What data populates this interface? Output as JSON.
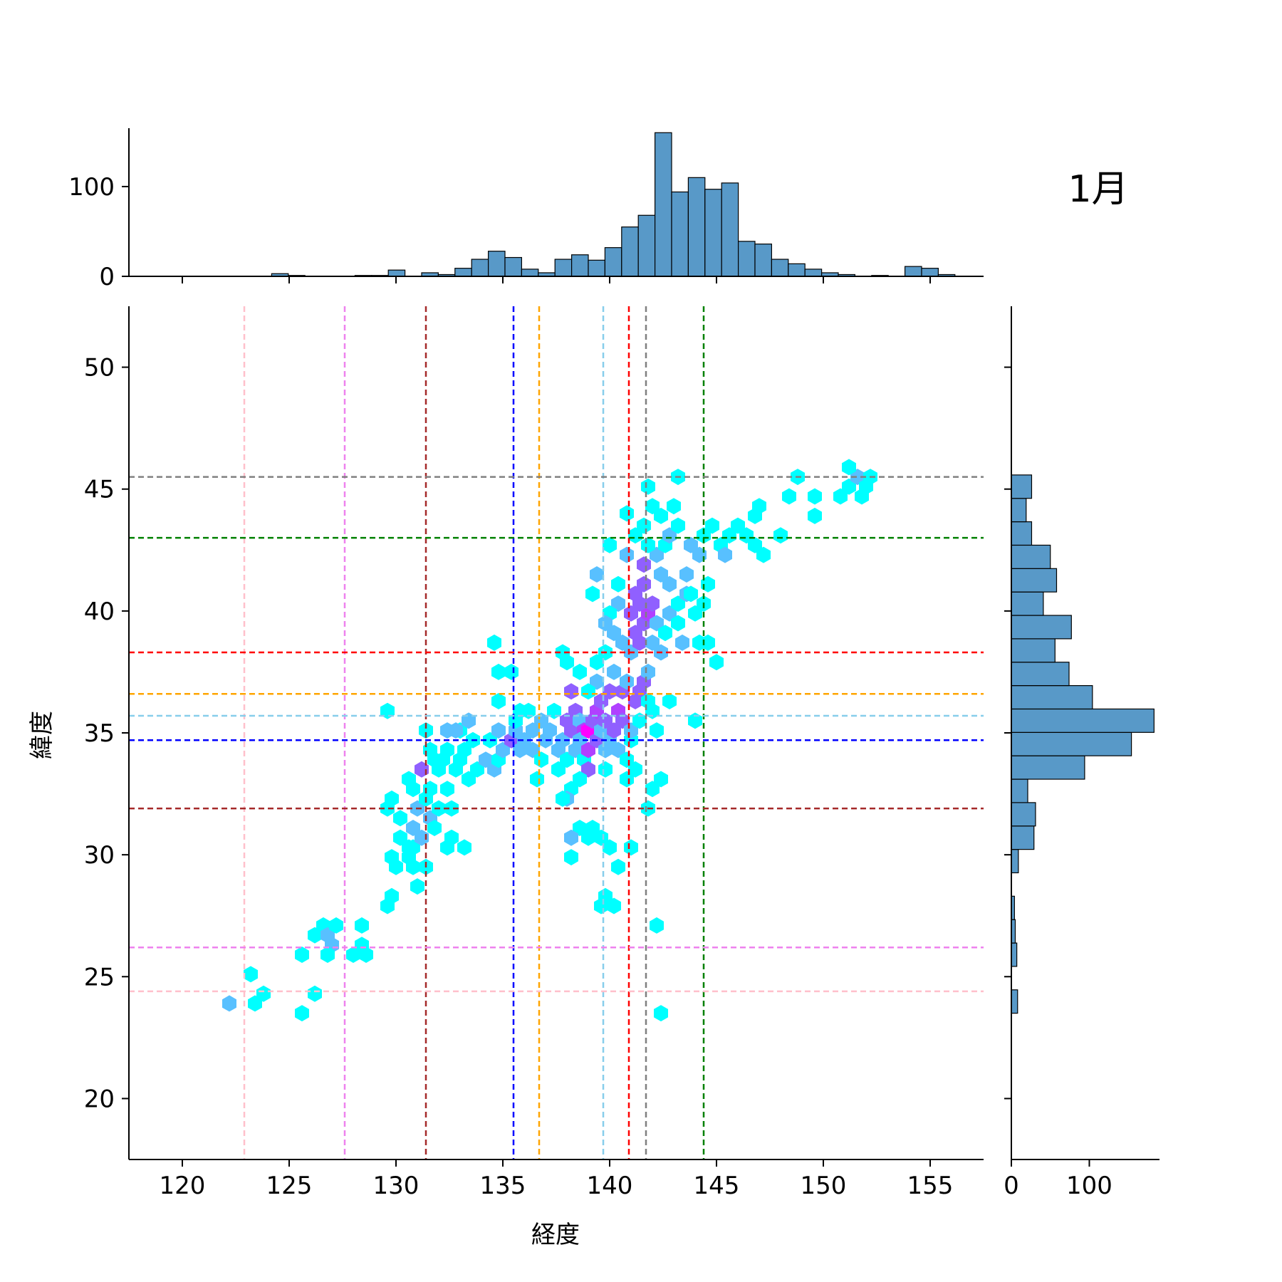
{
  "chart_data": {
    "type": "hexbin",
    "title": "1月",
    "xlabel": "経度",
    "ylabel": "緯度",
    "xlim": [
      117.5,
      157.5
    ],
    "ylim": [
      17.5,
      52.5
    ],
    "xticks": [
      120,
      125,
      130,
      135,
      140,
      145,
      150,
      155
    ],
    "yticks": [
      20,
      25,
      30,
      35,
      40,
      45,
      50
    ],
    "top_hist": {
      "bin_start": 119.5,
      "bin_width": 0.78,
      "yticks": [
        0,
        100
      ],
      "ylim": [
        0,
        165
      ],
      "counts": [
        0,
        0,
        0,
        0,
        0,
        0,
        3,
        1,
        0,
        0,
        0,
        1,
        1,
        7,
        0,
        4,
        2,
        9,
        19,
        28,
        21,
        8,
        4,
        19,
        24,
        18,
        32,
        55,
        68,
        160,
        94,
        110,
        97,
        104,
        39,
        36,
        19,
        14,
        8,
        4,
        2,
        0,
        1,
        0,
        11,
        9,
        2,
        0,
        0,
        0,
        0,
        0,
        0,
        0,
        0,
        0,
        0,
        0,
        0,
        0,
        0,
        0
      ]
    },
    "right_hist": {
      "bin_start": 23.5,
      "bin_width": 0.96,
      "xticks": [
        0,
        100
      ],
      "xlim": [
        0,
        190
      ],
      "counts": [
        8,
        0,
        7,
        5,
        4,
        0,
        9,
        29,
        31,
        21,
        94,
        154,
        183,
        104,
        74,
        56,
        77,
        41,
        58,
        50,
        26,
        19,
        26
      ]
    },
    "vlines": [
      {
        "x": 122.9,
        "color": "#ffc0cb"
      },
      {
        "x": 127.6,
        "color": "#ee82ee"
      },
      {
        "x": 131.4,
        "color": "#a52a2a"
      },
      {
        "x": 135.5,
        "color": "#0000ff"
      },
      {
        "x": 136.7,
        "color": "#ffa500"
      },
      {
        "x": 139.7,
        "color": "#87ceeb"
      },
      {
        "x": 140.9,
        "color": "#ff0000"
      },
      {
        "x": 141.7,
        "color": "#808080"
      },
      {
        "x": 144.4,
        "color": "#008000"
      }
    ],
    "hlines": [
      {
        "y": 24.4,
        "color": "#ffc0cb"
      },
      {
        "y": 26.2,
        "color": "#ee82ee"
      },
      {
        "y": 31.9,
        "color": "#a52a2a"
      },
      {
        "y": 34.7,
        "color": "#0000ff"
      },
      {
        "y": 35.7,
        "color": "#87ceeb"
      },
      {
        "y": 36.6,
        "color": "#ffa500"
      },
      {
        "y": 38.3,
        "color": "#ff0000"
      },
      {
        "y": 43.0,
        "color": "#008000"
      },
      {
        "y": 45.5,
        "color": "#808080"
      }
    ],
    "colormap": [
      "#00ffff",
      "#58c0ff",
      "#9060ff",
      "#b040ff",
      "#ff00ff"
    ],
    "hex_points": [
      [
        122.2,
        23.9,
        2
      ],
      [
        123.4,
        23.9,
        1
      ],
      [
        123.8,
        24.3,
        1
      ],
      [
        123.2,
        25.1,
        1
      ],
      [
        125.6,
        23.5,
        1
      ],
      [
        126.2,
        24.3,
        1
      ],
      [
        125.6,
        25.9,
        1
      ],
      [
        126.2,
        26.7,
        1
      ],
      [
        126.6,
        27.1,
        1
      ],
      [
        126.8,
        26.7,
        2
      ],
      [
        127.2,
        27.1,
        1
      ],
      [
        127.0,
        26.3,
        2
      ],
      [
        126.8,
        25.9,
        1
      ],
      [
        128.0,
        25.9,
        1
      ],
      [
        128.6,
        25.9,
        1
      ],
      [
        128.4,
        26.3,
        1
      ],
      [
        128.4,
        27.1,
        1
      ],
      [
        129.6,
        27.9,
        1
      ],
      [
        129.8,
        28.3,
        1
      ],
      [
        129.8,
        29.9,
        1
      ],
      [
        130.0,
        29.5,
        1
      ],
      [
        130.6,
        29.9,
        1
      ],
      [
        130.8,
        29.5,
        1
      ],
      [
        130.8,
        30.3,
        1
      ],
      [
        131.4,
        29.5,
        1
      ],
      [
        130.6,
        30.3,
        1
      ],
      [
        131.0,
        28.7,
        1
      ],
      [
        129.6,
        31.9,
        1
      ],
      [
        129.8,
        32.3,
        1
      ],
      [
        130.2,
        31.5,
        1
      ],
      [
        130.2,
        30.7,
        1
      ],
      [
        130.8,
        31.1,
        2
      ],
      [
        130.8,
        32.7,
        1
      ],
      [
        131.0,
        31.9,
        2
      ],
      [
        131.2,
        33.5,
        3
      ],
      [
        130.6,
        33.1,
        1
      ],
      [
        131.4,
        32.3,
        1
      ],
      [
        131.6,
        31.5,
        2
      ],
      [
        131.2,
        30.7,
        2
      ],
      [
        132.0,
        31.9,
        1
      ],
      [
        131.8,
        31.1,
        1
      ],
      [
        132.4,
        30.3,
        1
      ],
      [
        132.6,
        30.7,
        1
      ],
      [
        133.2,
        30.3,
        1
      ],
      [
        132.4,
        32.7,
        1
      ],
      [
        132.6,
        31.9,
        1
      ],
      [
        131.6,
        32.7,
        1
      ],
      [
        131.6,
        34.3,
        1
      ],
      [
        131.8,
        33.9,
        1
      ],
      [
        132.0,
        33.5,
        1
      ],
      [
        132.2,
        33.9,
        1
      ],
      [
        132.4,
        34.3,
        1
      ],
      [
        132.4,
        35.1,
        2
      ],
      [
        131.4,
        35.1,
        1
      ],
      [
        132.8,
        33.5,
        1
      ],
      [
        133.0,
        33.9,
        1
      ],
      [
        133.2,
        34.3,
        1
      ],
      [
        133.0,
        35.1,
        1
      ],
      [
        133.4,
        35.5,
        2
      ],
      [
        132.8,
        35.1,
        2
      ],
      [
        133.6,
        34.7,
        1
      ],
      [
        133.4,
        33.1,
        1
      ],
      [
        133.8,
        33.5,
        1
      ],
      [
        134.2,
        33.9,
        2
      ],
      [
        134.6,
        33.5,
        2
      ],
      [
        134.8,
        33.9,
        1
      ],
      [
        134.4,
        34.7,
        1
      ],
      [
        134.8,
        35.1,
        2
      ],
      [
        135.0,
        34.3,
        2
      ],
      [
        135.4,
        34.7,
        3
      ],
      [
        135.8,
        34.3,
        2
      ],
      [
        135.6,
        35.1,
        2
      ],
      [
        136.0,
        34.7,
        2
      ],
      [
        135.6,
        35.5,
        1
      ],
      [
        136.2,
        35.9,
        1
      ],
      [
        136.4,
        35.1,
        2
      ],
      [
        136.8,
        35.5,
        2
      ],
      [
        136.4,
        34.3,
        2
      ],
      [
        137.0,
        34.7,
        2
      ],
      [
        136.8,
        33.9,
        1
      ],
      [
        136.6,
        33.1,
        1
      ],
      [
        137.2,
        35.1,
        2
      ],
      [
        137.4,
        35.9,
        1
      ],
      [
        137.6,
        34.3,
        2
      ],
      [
        137.8,
        34.7,
        2
      ],
      [
        137.6,
        33.5,
        1
      ],
      [
        138.0,
        33.9,
        1
      ],
      [
        138.0,
        35.5,
        3
      ],
      [
        138.2,
        35.1,
        3
      ],
      [
        138.4,
        34.3,
        2
      ],
      [
        138.4,
        35.9,
        3
      ],
      [
        138.2,
        36.7,
        3
      ],
      [
        138.6,
        35.5,
        2
      ],
      [
        138.8,
        35.1,
        4
      ],
      [
        138.6,
        34.7,
        2
      ],
      [
        138.8,
        33.9,
        1
      ],
      [
        139.0,
        34.3,
        4
      ],
      [
        139.0,
        35.1,
        5
      ],
      [
        139.2,
        35.5,
        3
      ],
      [
        139.0,
        33.5,
        3
      ],
      [
        138.6,
        33.1,
        1
      ],
      [
        138.2,
        32.7,
        1
      ],
      [
        138.0,
        32.3,
        2
      ],
      [
        139.4,
        34.7,
        3
      ],
      [
        139.4,
        35.9,
        4
      ],
      [
        139.6,
        35.1,
        2
      ],
      [
        139.8,
        35.5,
        3
      ],
      [
        139.6,
        36.3,
        3
      ],
      [
        139.8,
        34.3,
        2
      ],
      [
        139.8,
        33.5,
        1
      ],
      [
        140.0,
        34.7,
        2
      ],
      [
        140.0,
        36.7,
        3
      ],
      [
        140.2,
        35.1,
        3
      ],
      [
        140.4,
        35.9,
        4
      ],
      [
        140.2,
        37.5,
        2
      ],
      [
        140.6,
        36.7,
        3
      ],
      [
        140.6,
        35.5,
        3
      ],
      [
        140.4,
        34.3,
        2
      ],
      [
        140.8,
        33.9,
        1
      ],
      [
        140.8,
        33.1,
        1
      ],
      [
        141.0,
        34.7,
        1
      ],
      [
        141.0,
        35.1,
        2
      ],
      [
        141.2,
        36.3,
        3
      ],
      [
        140.8,
        37.1,
        2
      ],
      [
        141.4,
        36.7,
        3
      ],
      [
        141.4,
        35.5,
        1
      ],
      [
        141.6,
        37.1,
        3
      ],
      [
        141.8,
        37.5,
        2
      ],
      [
        141.8,
        36.3,
        1
      ],
      [
        142.0,
        35.9,
        1
      ],
      [
        141.0,
        38.3,
        2
      ],
      [
        141.4,
        38.7,
        3
      ],
      [
        140.6,
        38.7,
        2
      ],
      [
        141.2,
        39.1,
        3
      ],
      [
        141.6,
        39.5,
        3
      ],
      [
        141.8,
        39.9,
        4
      ],
      [
        142.0,
        40.3,
        3
      ],
      [
        141.4,
        40.3,
        3
      ],
      [
        141.0,
        39.9,
        3
      ],
      [
        141.2,
        40.7,
        3
      ],
      [
        141.6,
        41.1,
        3
      ],
      [
        141.6,
        41.9,
        3
      ],
      [
        140.4,
        40.3,
        2
      ],
      [
        140.0,
        39.9,
        1
      ],
      [
        140.2,
        39.1,
        2
      ],
      [
        139.8,
        39.5,
        2
      ],
      [
        139.8,
        38.3,
        1
      ],
      [
        139.4,
        37.9,
        1
      ],
      [
        139.4,
        37.1,
        2
      ],
      [
        139.0,
        36.7,
        1
      ],
      [
        138.6,
        37.5,
        1
      ],
      [
        138.0,
        37.9,
        1
      ],
      [
        137.8,
        38.3,
        1
      ],
      [
        142.0,
        38.7,
        2
      ],
      [
        142.2,
        39.5,
        2
      ],
      [
        142.4,
        38.3,
        2
      ],
      [
        142.6,
        39.1,
        1
      ],
      [
        142.8,
        39.9,
        2
      ],
      [
        143.2,
        39.5,
        1
      ],
      [
        143.4,
        38.7,
        2
      ],
      [
        143.2,
        40.3,
        1
      ],
      [
        143.6,
        40.7,
        2
      ],
      [
        143.6,
        41.5,
        2
      ],
      [
        143.8,
        40.7,
        1
      ],
      [
        144.0,
        39.9,
        1
      ],
      [
        144.4,
        40.3,
        1
      ],
      [
        144.6,
        41.1,
        1
      ],
      [
        144.2,
        38.7,
        1
      ],
      [
        144.6,
        38.7,
        1
      ],
      [
        142.8,
        41.1,
        2
      ],
      [
        142.4,
        41.5,
        2
      ],
      [
        142.2,
        42.3,
        2
      ],
      [
        142.6,
        42.7,
        1
      ],
      [
        141.8,
        42.7,
        1
      ],
      [
        141.2,
        43.1,
        1
      ],
      [
        141.6,
        43.5,
        1
      ],
      [
        142.0,
        44.3,
        1
      ],
      [
        142.4,
        43.9,
        1
      ],
      [
        142.8,
        43.1,
        2
      ],
      [
        143.2,
        43.5,
        1
      ],
      [
        143.8,
        42.7,
        2
      ],
      [
        144.2,
        42.3,
        2
      ],
      [
        144.4,
        43.1,
        1
      ],
      [
        144.8,
        43.5,
        1
      ],
      [
        145.2,
        42.7,
        1
      ],
      [
        145.6,
        43.1,
        1
      ],
      [
        145.4,
        42.3,
        2
      ],
      [
        146.0,
        43.5,
        1
      ],
      [
        146.4,
        43.1,
        1
      ],
      [
        146.8,
        43.9,
        1
      ],
      [
        147.0,
        44.3,
        1
      ],
      [
        146.8,
        42.7,
        1
      ],
      [
        147.2,
        42.3,
        1
      ],
      [
        148.0,
        43.1,
        1
      ],
      [
        148.4,
        44.7,
        1
      ],
      [
        148.8,
        45.5,
        1
      ],
      [
        149.6,
        44.7,
        1
      ],
      [
        149.6,
        43.9,
        1
      ],
      [
        150.8,
        44.7,
        1
      ],
      [
        151.2,
        45.1,
        1
      ],
      [
        151.6,
        45.5,
        2
      ],
      [
        152.0,
        45.1,
        1
      ],
      [
        151.2,
        45.9,
        1
      ],
      [
        152.2,
        45.5,
        1
      ],
      [
        151.8,
        44.7,
        1
      ],
      [
        143.2,
        45.5,
        1
      ],
      [
        141.8,
        45.1,
        1
      ],
      [
        143.0,
        44.3,
        1
      ],
      [
        140.8,
        44.0,
        1
      ],
      [
        140.8,
        42.3,
        2
      ],
      [
        140.4,
        41.1,
        1
      ],
      [
        139.4,
        41.5,
        2
      ],
      [
        139.2,
        40.7,
        1
      ],
      [
        140.0,
        42.7,
        1
      ],
      [
        134.6,
        38.7,
        1
      ],
      [
        134.8,
        37.5,
        1
      ],
      [
        135.4,
        37.5,
        1
      ],
      [
        135.8,
        35.9,
        1
      ],
      [
        134.8,
        36.3,
        1
      ],
      [
        129.6,
        35.9,
        1
      ],
      [
        137.8,
        32.3,
        1
      ],
      [
        138.6,
        31.1,
        1
      ],
      [
        139.0,
        30.7,
        1
      ],
      [
        139.2,
        31.1,
        1
      ],
      [
        139.6,
        30.7,
        1
      ],
      [
        140.0,
        30.3,
        1
      ],
      [
        138.2,
        30.7,
        2
      ],
      [
        138.2,
        29.9,
        1
      ],
      [
        140.4,
        29.5,
        1
      ],
      [
        141.0,
        30.3,
        1
      ],
      [
        139.8,
        28.3,
        1
      ],
      [
        139.6,
        27.9,
        1
      ],
      [
        140.2,
        27.9,
        1
      ],
      [
        142.2,
        27.1,
        1
      ],
      [
        141.8,
        31.9,
        1
      ],
      [
        142.0,
        32.7,
        1
      ],
      [
        142.4,
        33.1,
        1
      ],
      [
        141.2,
        33.5,
        1
      ],
      [
        142.2,
        35.1,
        1
      ],
      [
        142.8,
        36.3,
        1
      ],
      [
        144.0,
        35.5,
        1
      ],
      [
        145.0,
        37.9,
        1
      ],
      [
        142.4,
        23.5,
        1
      ]
    ]
  }
}
